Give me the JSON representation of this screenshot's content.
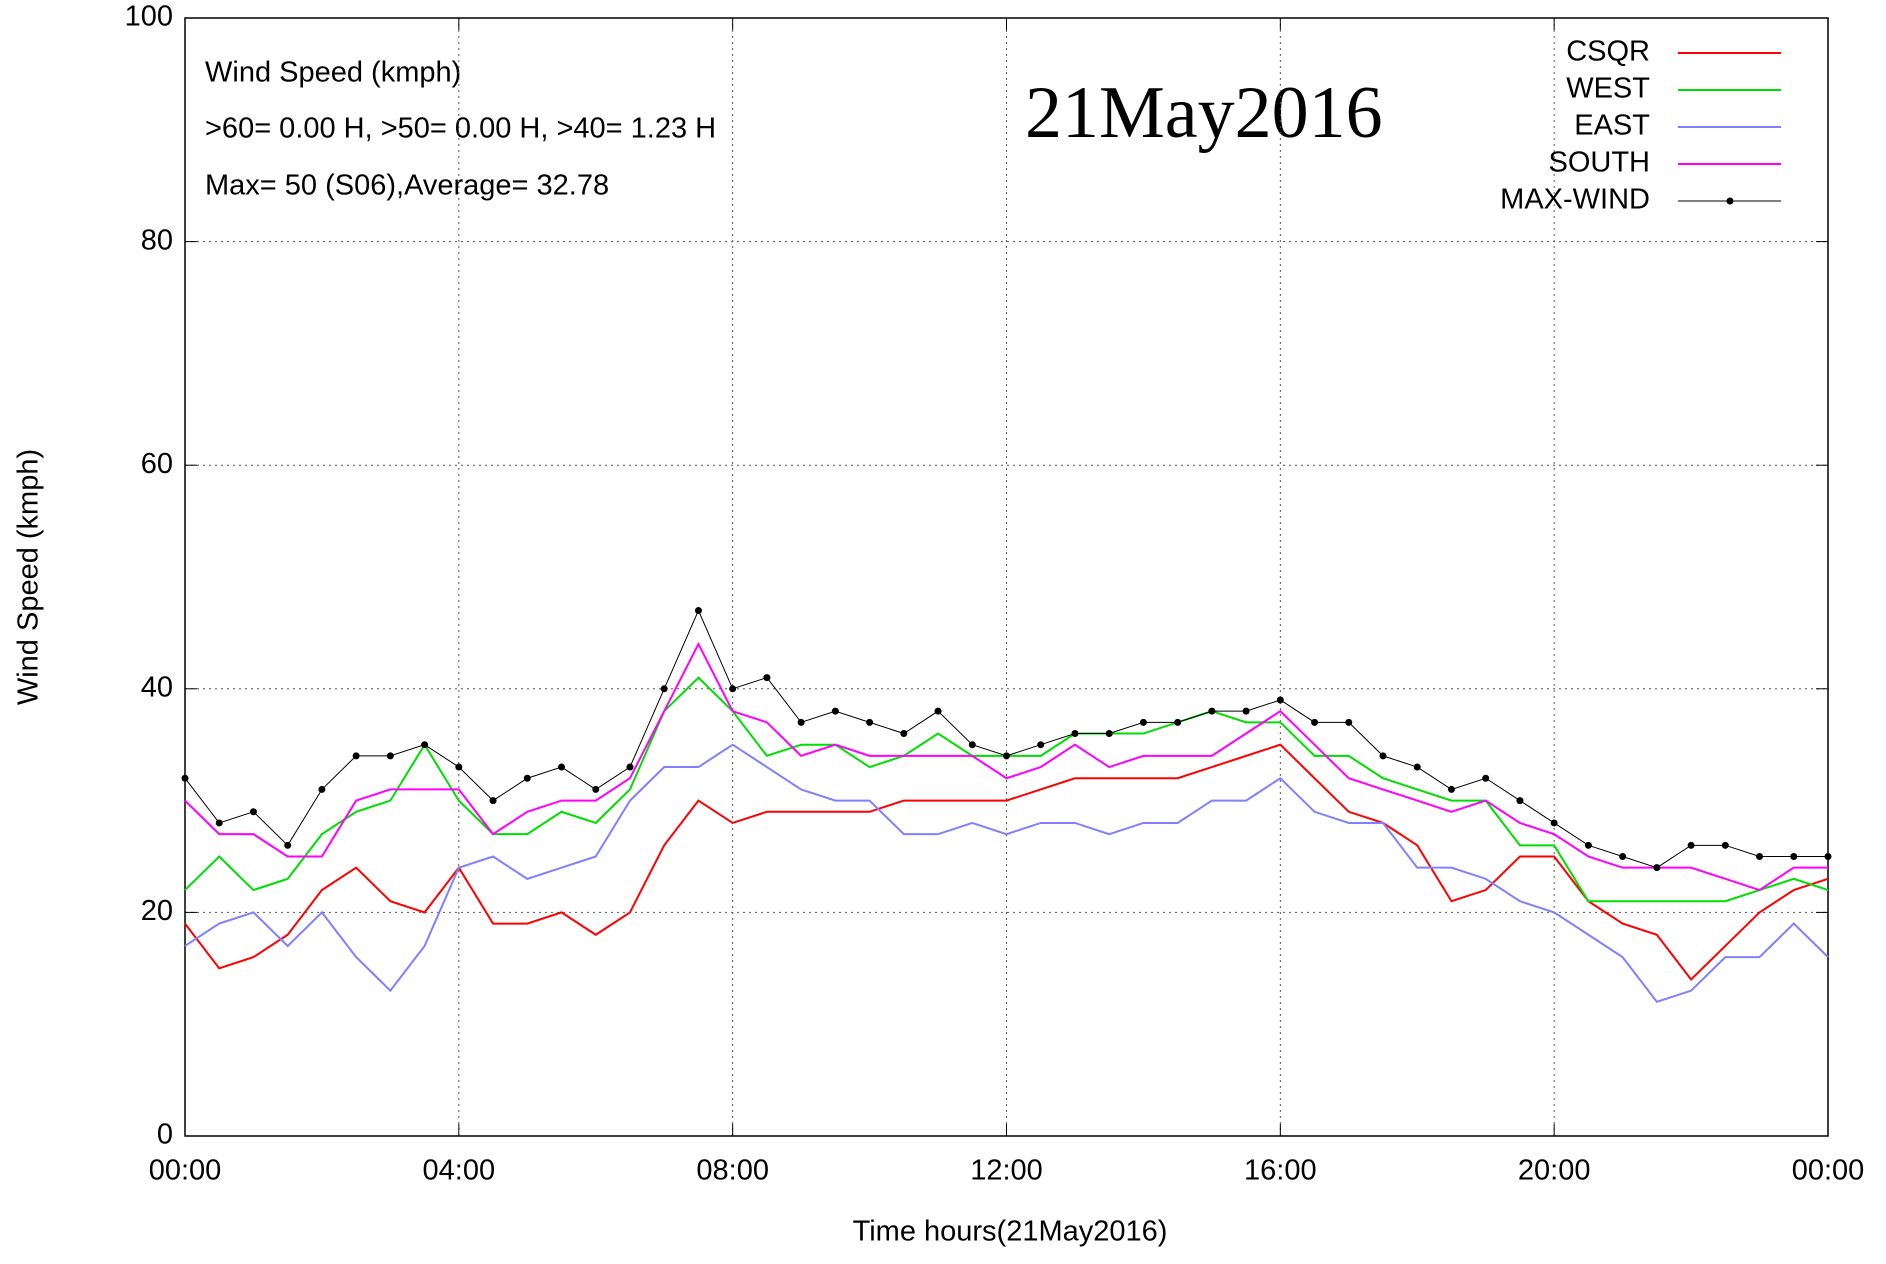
{
  "chart_data": {
    "type": "line",
    "xlabel": "Time hours(21May2016)",
    "ylabel": "Wind Speed (kmph)",
    "annotations": [
      "Wind Speed (kmph)",
      ">60=  0.00 H, >50=  0.00 H, >40=  1.23 H",
      "Max= 50 (S06),Average= 32.78"
    ],
    "date_label": "21May2016",
    "xlim": [
      0,
      24
    ],
    "xticks": [
      {
        "value": 0,
        "label": "00:00"
      },
      {
        "value": 4,
        "label": "04:00"
      },
      {
        "value": 8,
        "label": "08:00"
      },
      {
        "value": 12,
        "label": "12:00"
      },
      {
        "value": 16,
        "label": "16:00"
      },
      {
        "value": 20,
        "label": "20:00"
      },
      {
        "value": 24,
        "label": "00:00"
      }
    ],
    "ylim": [
      0,
      100
    ],
    "yticks": [
      0,
      20,
      40,
      60,
      80,
      100
    ],
    "grid": true,
    "legend": "top-right",
    "x": [
      0,
      0.5,
      1,
      1.5,
      2,
      2.5,
      3,
      3.5,
      4,
      4.5,
      5,
      5.5,
      6,
      6.5,
      7,
      7.5,
      8,
      8.5,
      9,
      9.5,
      10,
      10.5,
      11,
      11.5,
      12,
      12.5,
      13,
      13.5,
      14,
      14.5,
      15,
      15.5,
      16,
      16.5,
      17,
      17.5,
      18,
      18.5,
      19,
      19.5,
      20,
      20.5,
      21,
      21.5,
      22,
      22.5,
      23,
      23.5,
      24
    ],
    "series": [
      {
        "name": "CSQR",
        "color": "#ff0000",
        "values": [
          19,
          15,
          16,
          18,
          22,
          24,
          21,
          20,
          24,
          19,
          19,
          20,
          18,
          20,
          26,
          30,
          28,
          29,
          29,
          29,
          29,
          30,
          30,
          30,
          30,
          31,
          32,
          32,
          32,
          32,
          33,
          34,
          35,
          32,
          29,
          28,
          26,
          21,
          22,
          25,
          25,
          21,
          19,
          18,
          14,
          17,
          20,
          22,
          23
        ]
      },
      {
        "name": "WEST",
        "color": "#00dd00",
        "values": [
          22,
          25,
          22,
          23,
          27,
          29,
          30,
          35,
          30,
          27,
          27,
          29,
          28,
          31,
          38,
          41,
          38,
          34,
          35,
          35,
          33,
          34,
          36,
          34,
          34,
          34,
          36,
          36,
          36,
          37,
          38,
          37,
          37,
          34,
          34,
          32,
          31,
          30,
          30,
          26,
          26,
          21,
          21,
          21,
          21,
          21,
          22,
          23,
          22
        ]
      },
      {
        "name": "EAST",
        "color": "#8080ff",
        "values": [
          17,
          19,
          20,
          17,
          20,
          16,
          13,
          17,
          24,
          25,
          23,
          24,
          25,
          30,
          33,
          33,
          35,
          33,
          31,
          30,
          30,
          27,
          27,
          28,
          27,
          28,
          28,
          27,
          28,
          28,
          30,
          30,
          32,
          29,
          28,
          28,
          24,
          24,
          23,
          21,
          20,
          18,
          16,
          12,
          13,
          16,
          16,
          19,
          16
        ]
      },
      {
        "name": "SOUTH",
        "color": "#ff00ff",
        "values": [
          30,
          27,
          27,
          25,
          25,
          30,
          31,
          31,
          31,
          27,
          29,
          30,
          30,
          32,
          38,
          44,
          38,
          37,
          34,
          35,
          34,
          34,
          34,
          34,
          32,
          33,
          35,
          33,
          34,
          34,
          34,
          36,
          38,
          35,
          32,
          31,
          30,
          29,
          30,
          28,
          27,
          25,
          24,
          24,
          24,
          23,
          22,
          24,
          24
        ]
      },
      {
        "name": "MAX-WIND",
        "color": "#000000",
        "values": [
          32,
          28,
          29,
          26,
          31,
          34,
          34,
          35,
          33,
          30,
          32,
          33,
          31,
          33,
          40,
          47,
          40,
          41,
          37,
          38,
          37,
          36,
          38,
          35,
          34,
          35,
          36,
          36,
          37,
          37,
          38,
          38,
          39,
          37,
          37,
          34,
          33,
          31,
          32,
          30,
          28,
          26,
          25,
          24,
          26,
          26,
          25,
          25,
          25
        ]
      }
    ]
  }
}
